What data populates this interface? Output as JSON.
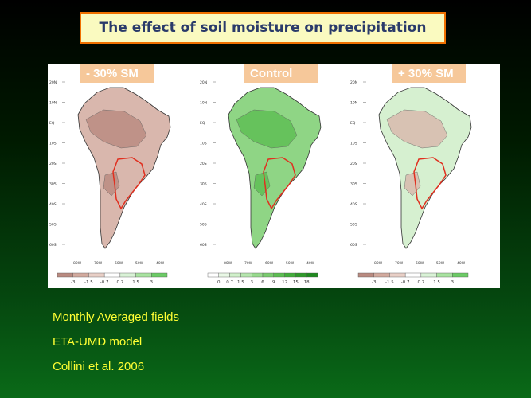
{
  "title": "The effect of soil moisture on precipitation",
  "panels": [
    {
      "label": "- 30% SM",
      "lat_ticks": [
        "20N",
        "10N",
        "EQ",
        "10S",
        "20S",
        "30S",
        "40S",
        "50S",
        "60S"
      ],
      "lon_ticks": [
        "80W",
        "70W",
        "60W",
        "50W",
        "40W"
      ],
      "colorbar": [
        "-3",
        "-1.5",
        "-0.7",
        "0.7",
        "1.5",
        "3"
      ],
      "colorbar_colors": [
        "#b98a80",
        "#d2aa9e",
        "#e8cfc6",
        "#ffffff",
        "#d9f2d6",
        "#a8e3a0",
        "#6ccb66"
      ],
      "map_fill": "#d9b7ad",
      "patch_fill": "#b98a80"
    },
    {
      "label": "Control",
      "lat_ticks": [
        "20N",
        "10N",
        "EQ",
        "10S",
        "20S",
        "30S",
        "40S",
        "50S",
        "60S"
      ],
      "lon_ticks": [
        "80W",
        "70W",
        "60W",
        "50W",
        "40W"
      ],
      "colorbar": [
        "0",
        "0.7",
        "1.5",
        "3",
        "6",
        "9",
        "12",
        "15",
        "18"
      ],
      "colorbar_colors": [
        "#ffffff",
        "#e9f8e6",
        "#d0f0ca",
        "#b5e6ad",
        "#97da8d",
        "#79cc6e",
        "#5cbe52",
        "#42ae3b",
        "#2f9a2a",
        "#1f8a1f"
      ],
      "map_fill": "#8fd585",
      "patch_fill": "#5cbe52"
    },
    {
      "label": "+ 30% SM",
      "lat_ticks": [
        "20N",
        "10N",
        "EQ",
        "10S",
        "20S",
        "30S",
        "40S",
        "50S",
        "60S"
      ],
      "lon_ticks": [
        "80W",
        "70W",
        "60W",
        "50W",
        "40W"
      ],
      "colorbar": [
        "-3",
        "-1.5",
        "-0.7",
        "0.7",
        "1.5",
        "3"
      ],
      "colorbar_colors": [
        "#b98a80",
        "#d2aa9e",
        "#e8cfc6",
        "#ffffff",
        "#d9f2d6",
        "#a8e3a0",
        "#6ccb66"
      ],
      "map_fill": "#d6f0d0",
      "patch_fill": "#d9b7ad"
    }
  ],
  "info_lines": [
    "Monthly Averaged fields",
    "ETA-UMD model",
    "Collini et al. 2006"
  ]
}
